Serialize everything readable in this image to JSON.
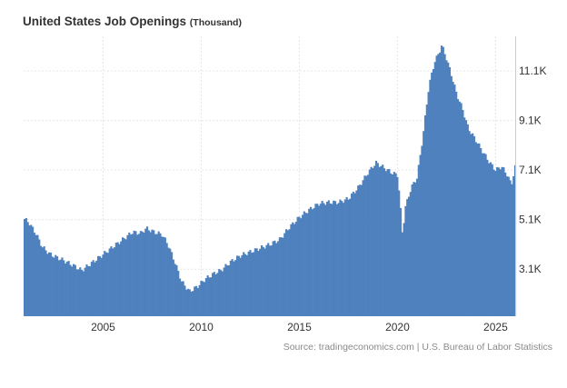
{
  "title": "United States Job Openings",
  "unit_label": "(Thousand)",
  "source": "Source: tradingeconomics.com | U.S. Bureau of Labor Statistics",
  "colors": {
    "bar": "#4e81bd",
    "grid": "#e6e6e6",
    "axis_text": "#333333",
    "source_text": "#8a8a8a"
  },
  "chart_data": {
    "type": "bar",
    "title": "United States Job Openings",
    "ylabel": "",
    "xlabel": "",
    "grid": true,
    "x_ticks": [
      "2005",
      "2010",
      "2015",
      "2020",
      "2025"
    ],
    "y_ticks": [
      "3.1K",
      "5.1K",
      "7.1K",
      "9.1K",
      "11.1K"
    ],
    "x_tick_values": [
      2005,
      2010,
      2015,
      2020,
      2025
    ],
    "y_tick_values": [
      3100,
      5100,
      7100,
      9100,
      11100
    ],
    "xlim": [
      2000.95,
      2026.0
    ],
    "ylim": [
      1200,
      12500
    ],
    "anchors": [
      [
        2000.95,
        5150
      ],
      [
        2001.2,
        5000
      ],
      [
        2001.6,
        4500
      ],
      [
        2001.9,
        4000
      ],
      [
        2002.3,
        3700
      ],
      [
        2003.0,
        3450
      ],
      [
        2003.6,
        3200
      ],
      [
        2003.9,
        3050
      ],
      [
        2004.5,
        3400
      ],
      [
        2005.0,
        3700
      ],
      [
        2005.5,
        4000
      ],
      [
        2006.0,
        4300
      ],
      [
        2006.5,
        4600
      ],
      [
        2006.9,
        4550
      ],
      [
        2007.2,
        4750
      ],
      [
        2007.6,
        4600
      ],
      [
        2008.0,
        4500
      ],
      [
        2008.3,
        4100
      ],
      [
        2008.6,
        3500
      ],
      [
        2009.0,
        2600
      ],
      [
        2009.4,
        2200
      ],
      [
        2009.8,
        2400
      ],
      [
        2010.2,
        2700
      ],
      [
        2010.7,
        2950
      ],
      [
        2011.0,
        3050
      ],
      [
        2011.5,
        3400
      ],
      [
        2012.0,
        3650
      ],
      [
        2012.5,
        3800
      ],
      [
        2013.0,
        3950
      ],
      [
        2013.5,
        4100
      ],
      [
        2014.0,
        4300
      ],
      [
        2014.5,
        4800
      ],
      [
        2015.0,
        5200
      ],
      [
        2015.5,
        5500
      ],
      [
        2016.0,
        5750
      ],
      [
        2016.5,
        5800
      ],
      [
        2017.0,
        5800
      ],
      [
        2017.5,
        5950
      ],
      [
        2018.0,
        6400
      ],
      [
        2018.5,
        7000
      ],
      [
        2018.9,
        7400
      ],
      [
        2019.3,
        7200
      ],
      [
        2019.7,
        7000
      ],
      [
        2020.0,
        6900
      ],
      [
        2020.1,
        6100
      ],
      [
        2020.25,
        4500
      ],
      [
        2020.4,
        5600
      ],
      [
        2020.7,
        6400
      ],
      [
        2021.0,
        6800
      ],
      [
        2021.3,
        8500
      ],
      [
        2021.6,
        10500
      ],
      [
        2021.9,
        11500
      ],
      [
        2022.1,
        11800
      ],
      [
        2022.25,
        12150
      ],
      [
        2022.5,
        11600
      ],
      [
        2022.8,
        10800
      ],
      [
        2023.0,
        10200
      ],
      [
        2023.3,
        9600
      ],
      [
        2023.6,
        8800
      ],
      [
        2024.0,
        8300
      ],
      [
        2024.3,
        7900
      ],
      [
        2024.7,
        7400
      ],
      [
        2025.0,
        7100
      ],
      [
        2025.3,
        7250
      ],
      [
        2025.6,
        6900
      ],
      [
        2025.8,
        6500
      ],
      [
        2026.0,
        7250
      ]
    ]
  }
}
